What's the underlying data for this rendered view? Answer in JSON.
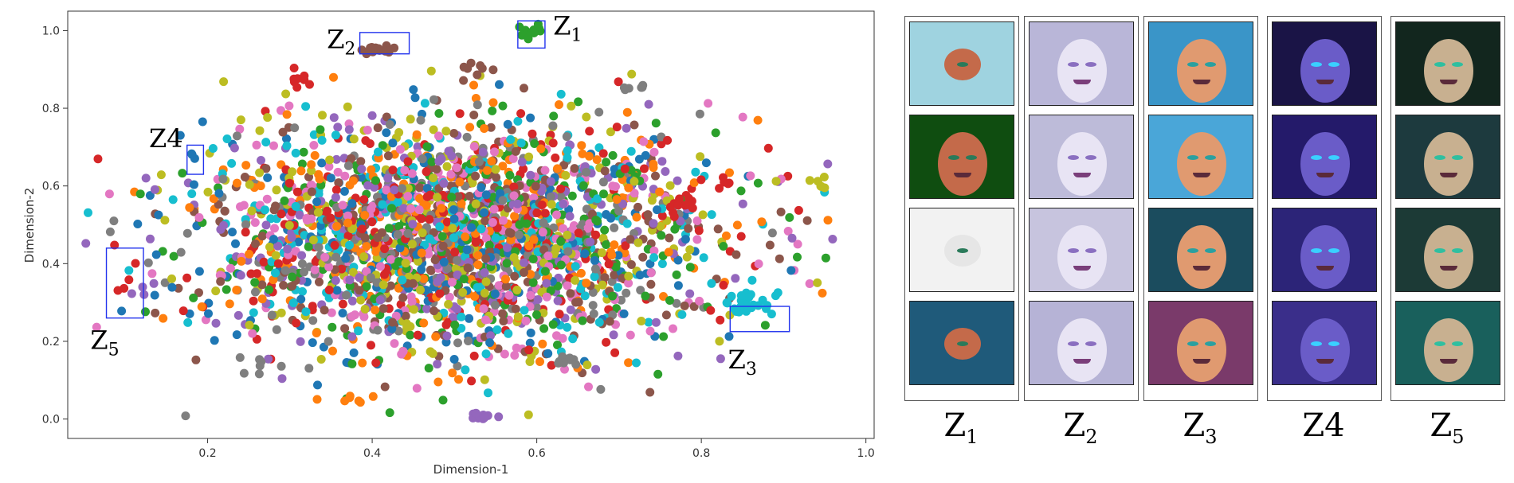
{
  "chart_data": {
    "type": "scatter",
    "xlabel": "Dimension-1",
    "ylabel": "Dimension-2",
    "xlim": [
      0.03,
      1.01
    ],
    "ylim": [
      -0.05,
      1.05
    ],
    "xticks": [
      "0.2",
      "0.4",
      "0.6",
      "0.8",
      "1.0"
    ],
    "yticks": [
      "0.0",
      "0.2",
      "0.4",
      "0.6",
      "0.8",
      "1.0"
    ],
    "grid": false,
    "palette": [
      "#1f77b4",
      "#ff7f0e",
      "#2ca02c",
      "#d62728",
      "#9467bd",
      "#8c564b",
      "#e377c2",
      "#7f7f7f",
      "#bcbd22",
      "#17becf"
    ],
    "clusters": [
      {
        "label": "Z1",
        "sub": "1",
        "box": {
          "x0": 0.577,
          "x1": 0.61,
          "y0": 0.955,
          "y1": 1.025
        },
        "color": "#2ca02c",
        "center": [
          0.593,
          0.99
        ],
        "spread": [
          0.008,
          0.01
        ],
        "count": 14
      },
      {
        "label": "Z2",
        "sub": "2",
        "box": {
          "x0": 0.385,
          "x1": 0.445,
          "y0": 0.94,
          "y1": 0.995
        },
        "color": "#8c564b",
        "center": [
          0.41,
          0.95
        ],
        "spread": [
          0.012,
          0.006
        ],
        "count": 16
      },
      {
        "label": "Z3",
        "sub": "3",
        "box": {
          "x0": 0.835,
          "x1": 0.907,
          "y0": 0.225,
          "y1": 0.29
        },
        "color": "#17becf",
        "center": [
          0.855,
          0.3
        ],
        "spread": [
          0.02,
          0.015
        ],
        "count": 28
      },
      {
        "label": "Z4",
        "sub": "",
        "box": {
          "x0": 0.175,
          "x1": 0.195,
          "y0": 0.63,
          "y1": 0.705
        },
        "color": "#1f77b4",
        "center": [
          0.185,
          0.67
        ],
        "spread": [
          0.003,
          0.012
        ],
        "count": 3
      },
      {
        "label": "Z5",
        "sub": "5",
        "box": {
          "x0": 0.077,
          "x1": 0.122,
          "y0": 0.26,
          "y1": 0.44
        },
        "color": "#d62728",
        "center": [
          0.1,
          0.35
        ],
        "spread": [
          0.01,
          0.04
        ],
        "count": 5
      }
    ]
  },
  "gallery": {
    "columns": [
      {
        "label": "Z",
        "sub": "1"
      },
      {
        "label": "Z",
        "sub": "2"
      },
      {
        "label": "Z",
        "sub": "3"
      },
      {
        "label": "Z4",
        "sub": ""
      },
      {
        "label": "Z",
        "sub": "5"
      }
    ]
  }
}
